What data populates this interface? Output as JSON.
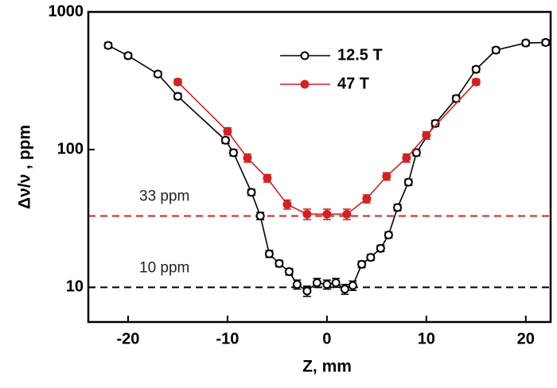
{
  "chart_data": {
    "type": "line",
    "xlabel": "Z, mm",
    "ylabel": "Δν/ν , ppm",
    "xlim": [
      -24,
      22.5
    ],
    "xticks": [
      -20,
      -10,
      0,
      10,
      20
    ],
    "ylim": [
      5.6,
      1000
    ],
    "yticks": [
      10,
      100,
      1000
    ],
    "log_y": true,
    "legend": "top",
    "series": [
      {
        "name": "12.5 T",
        "color": "#000000",
        "marker": "open",
        "x": [
          -22,
          -20,
          -17,
          -15,
          -10.2,
          -9.4,
          -7.6,
          -6.7,
          -5.8,
          -4.8,
          -3.8,
          -3,
          -2,
          -1,
          0,
          0.9,
          1.8,
          2.6,
          3.5,
          4.4,
          5.4,
          6.2,
          7.1,
          8.2,
          9,
          10.9,
          13,
          15,
          17,
          20,
          22
        ],
        "values": [
          571,
          481,
          354,
          244,
          117,
          95,
          49,
          33,
          17.5,
          14.9,
          13,
          10.5,
          9.4,
          10.8,
          10.5,
          10.8,
          9.7,
          10.3,
          14.7,
          16.5,
          19.2,
          24,
          38,
          58,
          95,
          155,
          235,
          383,
          528,
          595,
          600
        ],
        "errors": [
          25,
          20,
          15,
          12,
          6,
          5,
          2.5,
          2,
          1,
          0.8,
          0.7,
          0.8,
          0.8,
          0.8,
          0.8,
          0.8,
          0.8,
          0.8,
          0.8,
          0.8,
          1,
          1.2,
          2,
          3,
          5,
          8,
          12,
          18,
          25,
          28,
          28
        ]
      },
      {
        "name": "47 T",
        "color": "#d42020",
        "marker": "filled",
        "x": [
          -15,
          -10,
          -8,
          -6,
          -4,
          -2,
          0,
          2,
          4,
          6,
          8,
          10,
          15
        ],
        "values": [
          310,
          136,
          87,
          62,
          40,
          34,
          34,
          34,
          44,
          64,
          87,
          127,
          310
        ],
        "errors": [
          15,
          8,
          6,
          4,
          3,
          3,
          3,
          3,
          3,
          4,
          6,
          8,
          15
        ]
      }
    ],
    "reference_lines": [
      {
        "value": 33,
        "label": "33 ppm",
        "color": "#e02020"
      },
      {
        "value": 10,
        "label": "10 ppm",
        "color": "#000000"
      }
    ]
  }
}
